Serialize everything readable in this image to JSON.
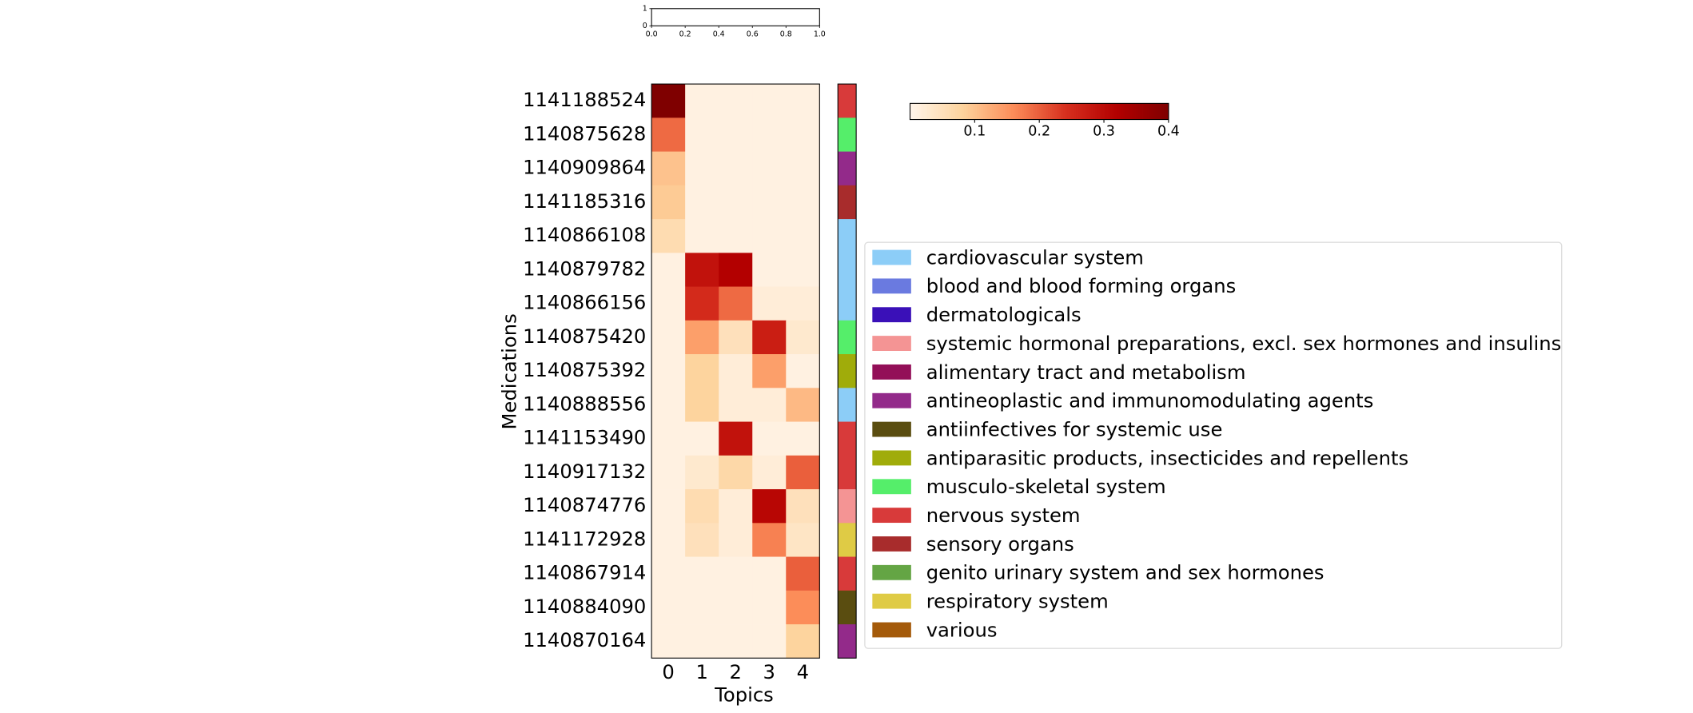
{
  "chart_data": {
    "type": "heatmap",
    "x_label": "Topics",
    "y_label": "Medications",
    "x_categories": [
      0,
      1,
      2,
      3,
      4
    ],
    "y_categories": [
      "1141188524",
      "1140875628",
      "1140909864",
      "1141185316",
      "1140866108",
      "1140879782",
      "1140866156",
      "1140875420",
      "1140875392",
      "1140888556",
      "1141153490",
      "1140917132",
      "1140874776",
      "1141172928",
      "1140867914",
      "1140884090",
      "1140870164"
    ],
    "values": [
      [
        0.4,
        0.01,
        0.01,
        0.01,
        0.01
      ],
      [
        0.19,
        0.01,
        0.01,
        0.01,
        0.01
      ],
      [
        0.1,
        0.01,
        0.01,
        0.01,
        0.01
      ],
      [
        0.09,
        0.01,
        0.01,
        0.01,
        0.01
      ],
      [
        0.06,
        0.01,
        0.01,
        0.01,
        0.01
      ],
      [
        0.01,
        0.29,
        0.32,
        0.01,
        0.01
      ],
      [
        0.01,
        0.25,
        0.19,
        0.02,
        0.02
      ],
      [
        0.01,
        0.14,
        0.05,
        0.27,
        0.03
      ],
      [
        0.01,
        0.08,
        0.02,
        0.14,
        0.01
      ],
      [
        0.01,
        0.08,
        0.02,
        0.02,
        0.11
      ],
      [
        0.01,
        0.01,
        0.29,
        0.01,
        0.01
      ],
      [
        0.01,
        0.03,
        0.07,
        0.02,
        0.2
      ],
      [
        0.01,
        0.06,
        0.02,
        0.31,
        0.05
      ],
      [
        0.01,
        0.05,
        0.02,
        0.17,
        0.04
      ],
      [
        0.01,
        0.01,
        0.01,
        0.01,
        0.2
      ],
      [
        0.01,
        0.01,
        0.01,
        0.01,
        0.16
      ],
      [
        0.01,
        0.01,
        0.01,
        0.01,
        0.08
      ]
    ],
    "colormap": [
      "#fff5eb",
      "#fdd49e",
      "#fc8d59",
      "#d7301f",
      "#b30000",
      "#7f0000"
    ],
    "clim": [
      0,
      0.4
    ],
    "cticks": [
      0.1,
      0.2,
      0.3,
      0.4
    ],
    "row_group_colors": [
      "#d83a3a",
      "#55ee6a",
      "#932a8a",
      "#a82c2c",
      "#8ccdf7",
      "#8ccdf7",
      "#8ccdf7",
      "#55ee6a",
      "#a0ac0a",
      "#8ccdf7",
      "#d83a3a",
      "#d83a3a",
      "#f49494",
      "#dfcb45",
      "#d83a3a",
      "#5a4d10",
      "#932a8a"
    ],
    "legend": [
      {
        "name": "cardiovascular system",
        "color": "#8ccdf7"
      },
      {
        "name": "blood and blood forming organs",
        "color": "#6a7ae0"
      },
      {
        "name": "dermatologicals",
        "color": "#3a10b8"
      },
      {
        "name": "systemic hormonal preparations, excl. sex hormones and insulins",
        "color": "#f49494"
      },
      {
        "name": "alimentary tract and metabolism",
        "color": "#930f58"
      },
      {
        "name": "antineoplastic and immunomodulating agents",
        "color": "#932a8a"
      },
      {
        "name": "antiinfectives for systemic use",
        "color": "#5a4d10"
      },
      {
        "name": "antiparasitic products, insecticides and repellents",
        "color": "#a0ac0a"
      },
      {
        "name": "musculo-skeletal system",
        "color": "#55ee6a"
      },
      {
        "name": "nervous system",
        "color": "#d83a3a"
      },
      {
        "name": "sensory organs",
        "color": "#a82c2c"
      },
      {
        "name": "genito urinary system and sex hormones",
        "color": "#64a544"
      },
      {
        "name": "respiratory system",
        "color": "#dfcb45"
      },
      {
        "name": "various",
        "color": "#a45a0a"
      }
    ],
    "inset_axes": {
      "xlim": [
        0,
        1
      ],
      "ylim": [
        0,
        1
      ],
      "xticks": [
        {
          "value": 0,
          "label": "0.0"
        },
        {
          "value": 0.2,
          "label": "0.2"
        },
        {
          "value": 0.4,
          "label": "0.4"
        },
        {
          "value": 0.6,
          "label": "0.6"
        },
        {
          "value": 0.8,
          "label": "0.8"
        },
        {
          "value": 1,
          "label": "1.0"
        }
      ],
      "yticks": [
        0,
        1
      ]
    }
  }
}
